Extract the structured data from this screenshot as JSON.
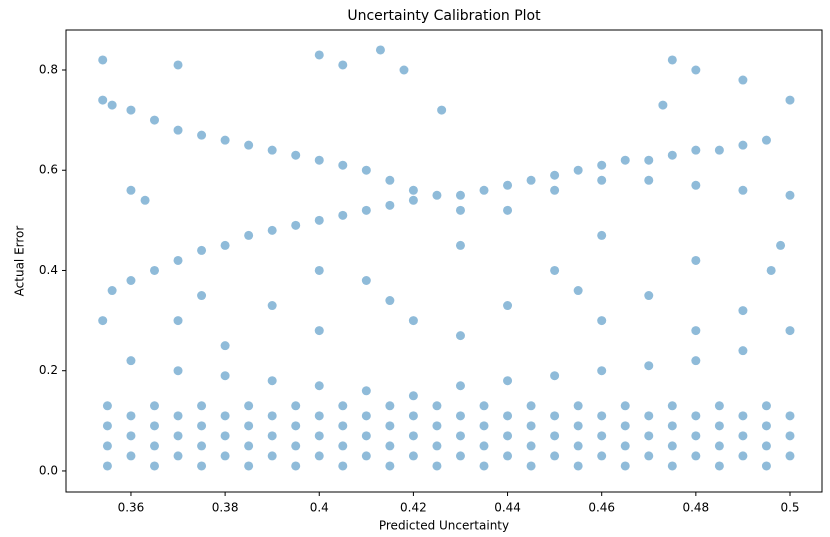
{
  "chart_data": {
    "type": "scatter",
    "title": "Uncertainty Calibration Plot",
    "x_label": "Predicted Uncertainty",
    "y_label": "Actual Error",
    "color": "#1f77b4",
    "alpha": 0.5,
    "xlim": [
      0.3462,
      0.5068
    ],
    "ylim": [
      -0.042,
      0.8798
    ],
    "xticks": [
      0.36,
      0.38,
      0.4,
      0.42,
      0.44,
      0.46,
      0.48,
      0.5
    ],
    "yticks": [
      {
        "value": 0,
        "label": "0.0"
      },
      0.2,
      0.4,
      0.6,
      0.8
    ],
    "x": [
      0.354,
      0.356,
      0.36,
      0.365,
      0.37,
      0.375,
      0.38,
      0.385,
      0.39,
      0.395,
      0.4,
      0.405,
      0.41,
      0.415,
      0.42,
      0.425,
      0.43,
      0.435,
      0.44,
      0.445,
      0.45,
      0.455,
      0.46,
      0.465,
      0.47,
      0.475,
      0.48,
      0.485,
      0.49,
      0.495,
      0.5,
      0.354,
      0.356,
      0.36,
      0.365,
      0.37,
      0.375,
      0.38,
      0.385,
      0.39,
      0.395,
      0.4,
      0.405,
      0.41,
      0.415,
      0.42,
      0.43,
      0.44,
      0.45,
      0.46,
      0.47,
      0.48,
      0.49,
      0.5,
      0.498,
      0.496,
      0.354,
      0.37,
      0.4,
      0.405,
      0.413,
      0.418,
      0.475,
      0.48,
      0.49,
      0.36,
      0.363,
      0.426,
      0.473,
      0.37,
      0.38,
      0.39,
      0.4,
      0.41,
      0.42,
      0.43,
      0.44,
      0.45,
      0.46,
      0.47,
      0.48,
      0.49,
      0.4,
      0.43,
      0.46,
      0.48,
      0.375,
      0.455,
      0.415,
      0.36,
      0.37,
      0.38,
      0.39,
      0.4,
      0.41,
      0.42,
      0.43,
      0.44,
      0.45,
      0.46,
      0.47,
      0.48,
      0.49,
      0.5,
      0.355,
      0.365,
      0.375,
      0.385,
      0.395,
      0.405,
      0.415,
      0.425,
      0.435,
      0.445,
      0.455,
      0.465,
      0.475,
      0.485,
      0.495,
      0.355,
      0.365,
      0.375,
      0.385,
      0.395,
      0.405,
      0.415,
      0.425,
      0.435,
      0.445,
      0.455,
      0.465,
      0.475,
      0.485,
      0.495,
      0.355,
      0.365,
      0.375,
      0.385,
      0.395,
      0.405,
      0.415,
      0.425,
      0.435,
      0.445,
      0.455,
      0.465,
      0.475,
      0.485,
      0.495,
      0.355,
      0.365,
      0.375,
      0.385,
      0.395,
      0.405,
      0.415,
      0.425,
      0.435,
      0.445,
      0.455,
      0.465,
      0.475,
      0.485,
      0.495,
      0.36,
      0.37,
      0.38,
      0.39,
      0.4,
      0.41,
      0.42,
      0.43,
      0.44,
      0.45,
      0.46,
      0.47,
      0.48,
      0.49,
      0.5,
      0.36,
      0.37,
      0.38,
      0.39,
      0.4,
      0.41,
      0.42,
      0.43,
      0.44,
      0.45,
      0.46,
      0.47,
      0.48,
      0.49,
      0.5,
      0.36,
      0.37,
      0.38,
      0.39,
      0.4,
      0.41,
      0.42,
      0.43,
      0.44,
      0.45,
      0.46,
      0.47,
      0.48,
      0.49,
      0.5
    ],
    "y": [
      0.74,
      0.73,
      0.72,
      0.7,
      0.68,
      0.67,
      0.66,
      0.65,
      0.64,
      0.63,
      0.62,
      0.61,
      0.6,
      0.58,
      0.56,
      0.55,
      0.55,
      0.56,
      0.57,
      0.58,
      0.59,
      0.6,
      0.61,
      0.62,
      0.62,
      0.63,
      0.64,
      0.64,
      0.65,
      0.66,
      0.74,
      0.3,
      0.36,
      0.38,
      0.4,
      0.42,
      0.44,
      0.45,
      0.47,
      0.48,
      0.49,
      0.5,
      0.51,
      0.52,
      0.53,
      0.54,
      0.52,
      0.52,
      0.56,
      0.58,
      0.58,
      0.57,
      0.56,
      0.55,
      0.45,
      0.4,
      0.82,
      0.81,
      0.83,
      0.81,
      0.84,
      0.8,
      0.82,
      0.8,
      0.78,
      0.56,
      0.54,
      0.72,
      0.73,
      0.3,
      0.25,
      0.33,
      0.28,
      0.38,
      0.3,
      0.27,
      0.33,
      0.4,
      0.3,
      0.35,
      0.28,
      0.32,
      0.4,
      0.45,
      0.47,
      0.42,
      0.35,
      0.36,
      0.34,
      0.22,
      0.2,
      0.19,
      0.18,
      0.17,
      0.16,
      0.15,
      0.17,
      0.18,
      0.19,
      0.2,
      0.21,
      0.22,
      0.24,
      0.28,
      0.01,
      0.01,
      0.01,
      0.01,
      0.01,
      0.01,
      0.01,
      0.01,
      0.01,
      0.01,
      0.01,
      0.01,
      0.01,
      0.01,
      0.01,
      0.05,
      0.05,
      0.05,
      0.05,
      0.05,
      0.05,
      0.05,
      0.05,
      0.05,
      0.05,
      0.05,
      0.05,
      0.05,
      0.05,
      0.05,
      0.09,
      0.09,
      0.09,
      0.09,
      0.09,
      0.09,
      0.09,
      0.09,
      0.09,
      0.09,
      0.09,
      0.09,
      0.09,
      0.09,
      0.09,
      0.13,
      0.13,
      0.13,
      0.13,
      0.13,
      0.13,
      0.13,
      0.13,
      0.13,
      0.13,
      0.13,
      0.13,
      0.13,
      0.13,
      0.13,
      0.03,
      0.03,
      0.03,
      0.03,
      0.03,
      0.03,
      0.03,
      0.03,
      0.03,
      0.03,
      0.03,
      0.03,
      0.03,
      0.03,
      0.03,
      0.07,
      0.07,
      0.07,
      0.07,
      0.07,
      0.07,
      0.07,
      0.07,
      0.07,
      0.07,
      0.07,
      0.07,
      0.07,
      0.07,
      0.07,
      0.11,
      0.11,
      0.11,
      0.11,
      0.11,
      0.11,
      0.11,
      0.11,
      0.11,
      0.11,
      0.11,
      0.11,
      0.11,
      0.11,
      0.11
    ]
  }
}
